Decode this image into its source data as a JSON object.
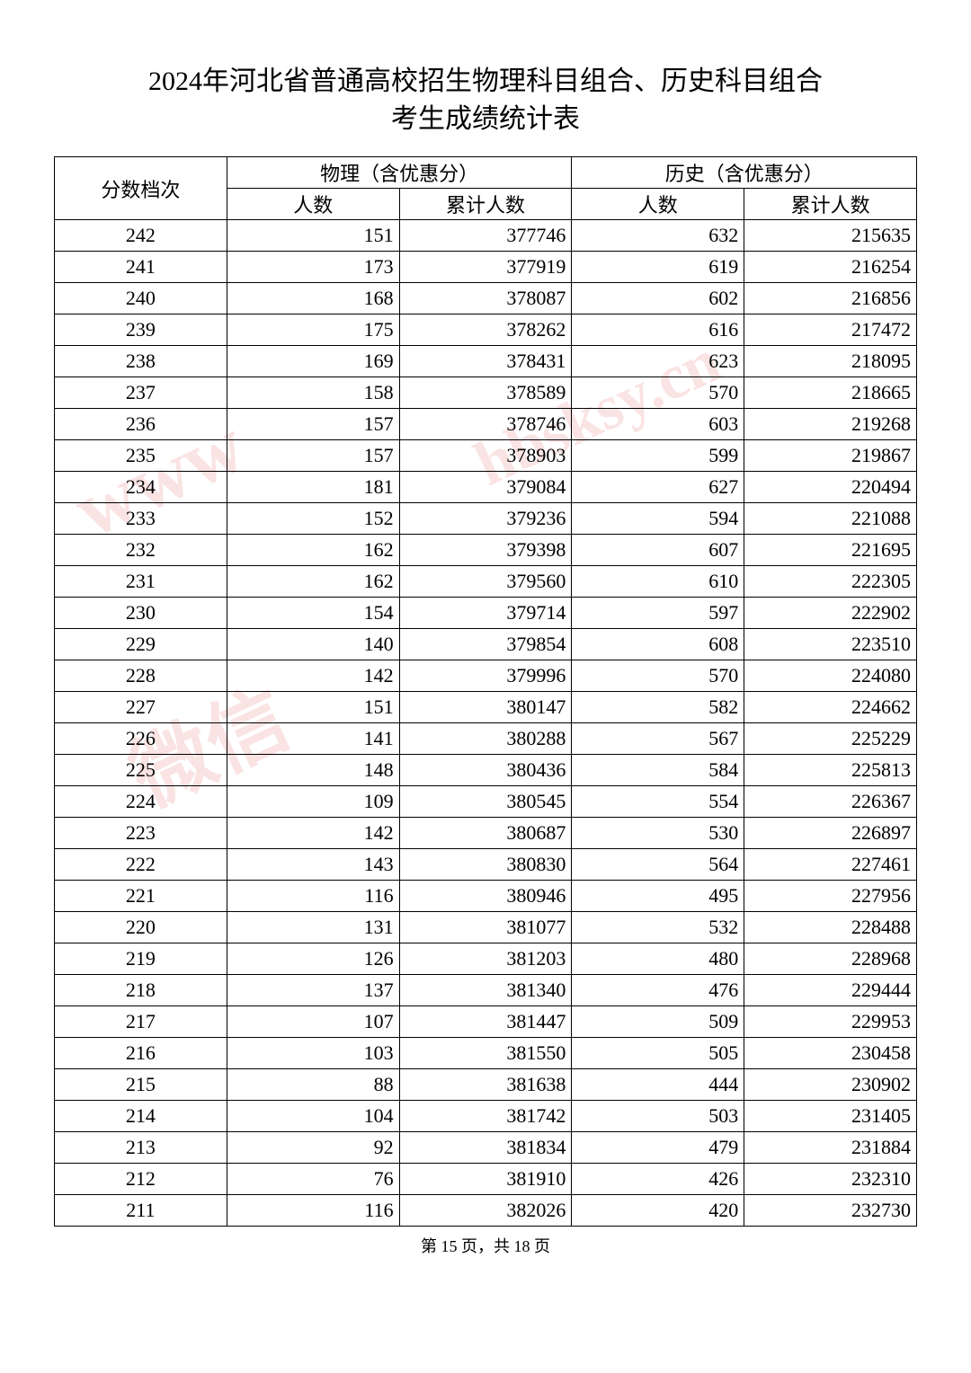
{
  "title_line1": "2024年河北省普通高校招生物理科目组合、历史科目组合",
  "title_line2": "考生成绩统计表",
  "headers": {
    "score": "分数档次",
    "physics": "物理（含优惠分）",
    "history": "历史（含优惠分）",
    "count": "人数",
    "cumulative": "累计人数"
  },
  "columns": [
    "score",
    "phys_count",
    "phys_cum",
    "hist_count",
    "hist_cum"
  ],
  "col_alignment": [
    "center",
    "right",
    "right",
    "right",
    "right"
  ],
  "border_color": "#000000",
  "text_color": "#000000",
  "background_color": "#ffffff",
  "font_family": "SimSun",
  "title_fontsize": 30,
  "cell_fontsize": 22,
  "rows": [
    {
      "score": "242",
      "phys_count": "151",
      "phys_cum": "377746",
      "hist_count": "632",
      "hist_cum": "215635"
    },
    {
      "score": "241",
      "phys_count": "173",
      "phys_cum": "377919",
      "hist_count": "619",
      "hist_cum": "216254"
    },
    {
      "score": "240",
      "phys_count": "168",
      "phys_cum": "378087",
      "hist_count": "602",
      "hist_cum": "216856"
    },
    {
      "score": "239",
      "phys_count": "175",
      "phys_cum": "378262",
      "hist_count": "616",
      "hist_cum": "217472"
    },
    {
      "score": "238",
      "phys_count": "169",
      "phys_cum": "378431",
      "hist_count": "623",
      "hist_cum": "218095"
    },
    {
      "score": "237",
      "phys_count": "158",
      "phys_cum": "378589",
      "hist_count": "570",
      "hist_cum": "218665"
    },
    {
      "score": "236",
      "phys_count": "157",
      "phys_cum": "378746",
      "hist_count": "603",
      "hist_cum": "219268"
    },
    {
      "score": "235",
      "phys_count": "157",
      "phys_cum": "378903",
      "hist_count": "599",
      "hist_cum": "219867"
    },
    {
      "score": "234",
      "phys_count": "181",
      "phys_cum": "379084",
      "hist_count": "627",
      "hist_cum": "220494"
    },
    {
      "score": "233",
      "phys_count": "152",
      "phys_cum": "379236",
      "hist_count": "594",
      "hist_cum": "221088"
    },
    {
      "score": "232",
      "phys_count": "162",
      "phys_cum": "379398",
      "hist_count": "607",
      "hist_cum": "221695"
    },
    {
      "score": "231",
      "phys_count": "162",
      "phys_cum": "379560",
      "hist_count": "610",
      "hist_cum": "222305"
    },
    {
      "score": "230",
      "phys_count": "154",
      "phys_cum": "379714",
      "hist_count": "597",
      "hist_cum": "222902"
    },
    {
      "score": "229",
      "phys_count": "140",
      "phys_cum": "379854",
      "hist_count": "608",
      "hist_cum": "223510"
    },
    {
      "score": "228",
      "phys_count": "142",
      "phys_cum": "379996",
      "hist_count": "570",
      "hist_cum": "224080"
    },
    {
      "score": "227",
      "phys_count": "151",
      "phys_cum": "380147",
      "hist_count": "582",
      "hist_cum": "224662"
    },
    {
      "score": "226",
      "phys_count": "141",
      "phys_cum": "380288",
      "hist_count": "567",
      "hist_cum": "225229"
    },
    {
      "score": "225",
      "phys_count": "148",
      "phys_cum": "380436",
      "hist_count": "584",
      "hist_cum": "225813"
    },
    {
      "score": "224",
      "phys_count": "109",
      "phys_cum": "380545",
      "hist_count": "554",
      "hist_cum": "226367"
    },
    {
      "score": "223",
      "phys_count": "142",
      "phys_cum": "380687",
      "hist_count": "530",
      "hist_cum": "226897"
    },
    {
      "score": "222",
      "phys_count": "143",
      "phys_cum": "380830",
      "hist_count": "564",
      "hist_cum": "227461"
    },
    {
      "score": "221",
      "phys_count": "116",
      "phys_cum": "380946",
      "hist_count": "495",
      "hist_cum": "227956"
    },
    {
      "score": "220",
      "phys_count": "131",
      "phys_cum": "381077",
      "hist_count": "532",
      "hist_cum": "228488"
    },
    {
      "score": "219",
      "phys_count": "126",
      "phys_cum": "381203",
      "hist_count": "480",
      "hist_cum": "228968"
    },
    {
      "score": "218",
      "phys_count": "137",
      "phys_cum": "381340",
      "hist_count": "476",
      "hist_cum": "229444"
    },
    {
      "score": "217",
      "phys_count": "107",
      "phys_cum": "381447",
      "hist_count": "509",
      "hist_cum": "229953"
    },
    {
      "score": "216",
      "phys_count": "103",
      "phys_cum": "381550",
      "hist_count": "505",
      "hist_cum": "230458"
    },
    {
      "score": "215",
      "phys_count": "88",
      "phys_cum": "381638",
      "hist_count": "444",
      "hist_cum": "230902"
    },
    {
      "score": "214",
      "phys_count": "104",
      "phys_cum": "381742",
      "hist_count": "503",
      "hist_cum": "231405"
    },
    {
      "score": "213",
      "phys_count": "92",
      "phys_cum": "381834",
      "hist_count": "479",
      "hist_cum": "231884"
    },
    {
      "score": "212",
      "phys_count": "76",
      "phys_cum": "381910",
      "hist_count": "426",
      "hist_cum": "232310"
    },
    {
      "score": "211",
      "phys_count": "116",
      "phys_cum": "382026",
      "hist_count": "420",
      "hist_cum": "232730"
    }
  ],
  "footer": "第 15 页，共 18 页",
  "watermarks": [
    "www",
    "微信",
    "hbsksy.cn"
  ]
}
